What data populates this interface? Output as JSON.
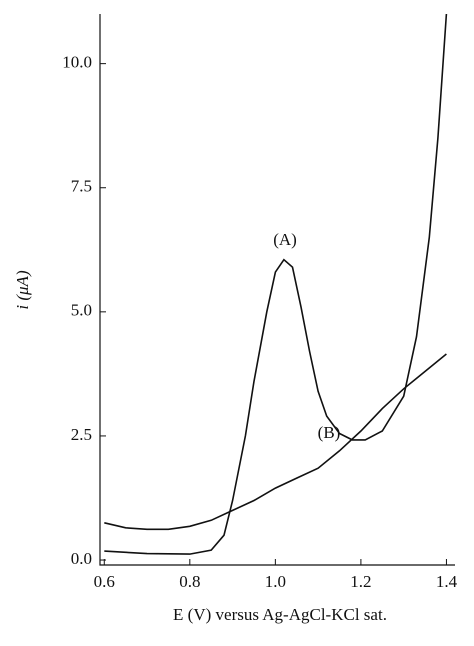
{
  "chart_data": {
    "type": "line",
    "x_label": "E (V) versus Ag-AgCl-KCl sat.",
    "y_label": "i (μA)",
    "annotations": [
      "(A)",
      "(B)"
    ],
    "xlim": [
      0.59,
      1.42
    ],
    "ylim": [
      -0.1,
      11.0
    ],
    "xticks": [
      0.6,
      0.8,
      {
        "value": 1.0,
        "label": "1.0"
      },
      1.2,
      1.4
    ],
    "yticks": [
      {
        "value": 0,
        "label": "0.0"
      },
      2.5,
      {
        "value": 5,
        "label": "5.0"
      },
      7.5,
      {
        "value": 10,
        "label": "10.0"
      }
    ],
    "series": [
      {
        "name": "(A)",
        "color": "#111111",
        "x": [
          0.6,
          0.7,
          0.8,
          0.85,
          0.88,
          0.9,
          0.93,
          0.95,
          0.98,
          1.0,
          1.02,
          1.04,
          1.06,
          1.08,
          1.1,
          1.12,
          1.15,
          1.18,
          1.21,
          1.25,
          1.3,
          1.33,
          1.36,
          1.38,
          1.4
        ],
        "values": [
          0.18,
          0.13,
          0.12,
          0.2,
          0.5,
          1.2,
          2.5,
          3.6,
          5.0,
          5.8,
          6.05,
          5.9,
          5.1,
          4.2,
          3.4,
          2.9,
          2.55,
          2.42,
          2.42,
          2.6,
          3.3,
          4.5,
          6.5,
          8.5,
          11.0
        ]
      },
      {
        "name": "(B)",
        "color": "#111111",
        "x": [
          0.6,
          0.65,
          0.7,
          0.75,
          0.8,
          0.85,
          0.9,
          0.95,
          1.0,
          1.05,
          1.1,
          1.15,
          1.2,
          1.25,
          1.3,
          1.35,
          1.4
        ],
        "values": [
          0.75,
          0.65,
          0.62,
          0.62,
          0.68,
          0.8,
          1.0,
          1.2,
          1.45,
          1.65,
          1.85,
          2.2,
          2.6,
          3.05,
          3.45,
          3.8,
          4.15
        ]
      }
    ]
  }
}
